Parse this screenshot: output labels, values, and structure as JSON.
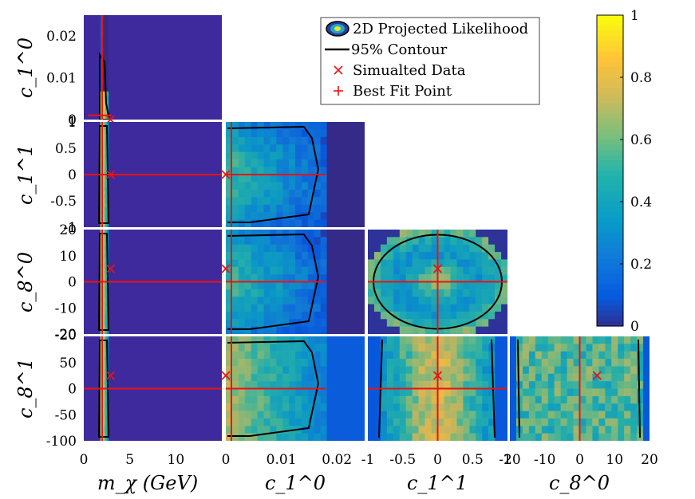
{
  "chart_data": {
    "type": "heatmap",
    "title": "",
    "legend": {
      "position": "top-center",
      "entries": [
        {
          "label": "2D Projected Likelihood",
          "marker": "filled-contour-ellipse"
        },
        {
          "label": "95% Contour",
          "marker": "black-line"
        },
        {
          "label": "Simualted Data",
          "marker": "red-x"
        },
        {
          "label": "Best Fit Point",
          "marker": "red-plus"
        }
      ]
    },
    "colorbar": {
      "min": 0,
      "max": 1,
      "ticks": [
        0,
        0.2,
        0.4,
        0.6,
        0.8,
        1
      ],
      "tick_labels": [
        "0",
        "0.2",
        "0.4",
        "0.6",
        "0.8",
        "1"
      ],
      "colormap": "parula"
    },
    "parameters": [
      {
        "key": "mchi",
        "label_main": "m",
        "label_sub": "χ",
        "label_unit": " (GeV)",
        "range": [
          0,
          15
        ],
        "ticks": [
          0,
          5,
          10
        ],
        "tick_labels": [
          "0",
          "5",
          "10"
        ],
        "simulated": 2.9,
        "best_fit": 2.0
      },
      {
        "key": "c10",
        "label_main": "c",
        "label_sub": "1",
        "label_sup": "0",
        "range": [
          0,
          0.025
        ],
        "ticks": [
          0,
          0.01,
          0.02
        ],
        "tick_labels": [
          "0",
          "0.01",
          "0.02"
        ],
        "simulated": 0.0,
        "best_fit": 0.001
      },
      {
        "key": "c11",
        "label_main": "c",
        "label_sub": "1",
        "label_sup": "1",
        "range": [
          -1,
          1
        ],
        "ticks": [
          -1,
          -0.5,
          0,
          0.5,
          1
        ],
        "tick_labels": [
          "-1",
          "-0.5",
          "0",
          "0.5",
          "1"
        ],
        "simulated": 0.0,
        "best_fit": 0.0
      },
      {
        "key": "c80",
        "label_main": "c",
        "label_sub": "8",
        "label_sup": "0",
        "range": [
          -20,
          20
        ],
        "ticks": [
          -20,
          -10,
          0,
          10,
          20
        ],
        "tick_labels": [
          "-20",
          "-10",
          "0",
          "10",
          "20"
        ],
        "simulated": 5,
        "best_fit": 0
      },
      {
        "key": "c81",
        "label_main": "c",
        "label_sub": "8",
        "label_sup": "1",
        "range": [
          -100,
          100
        ],
        "ticks": [
          -100,
          -50,
          0,
          50
        ],
        "tick_labels": [
          "-100",
          "-50",
          "0",
          "50"
        ],
        "simulated": 25,
        "best_fit": 0
      }
    ],
    "panels": [
      {
        "x": "mchi",
        "y": "c10"
      },
      {
        "x": "mchi",
        "y": "c11"
      },
      {
        "x": "c10",
        "y": "c11"
      },
      {
        "x": "mchi",
        "y": "c80"
      },
      {
        "x": "c10",
        "y": "c80"
      },
      {
        "x": "c11",
        "y": "c80"
      },
      {
        "x": "mchi",
        "y": "c81"
      },
      {
        "x": "c10",
        "y": "c81"
      },
      {
        "x": "c11",
        "y": "c81"
      },
      {
        "x": "c80",
        "y": "c81"
      }
    ],
    "axis_labels": {
      "x": [
        "m_χ (GeV)",
        "c_1^0",
        "c_1^1",
        "c_8^0"
      ],
      "y": [
        "c_1^0",
        "c_1^1",
        "c_8^0",
        "c_8^1"
      ]
    },
    "colors": {
      "background": "#3e2a9c",
      "contour": "#000000",
      "marker": "#ee1111"
    }
  }
}
